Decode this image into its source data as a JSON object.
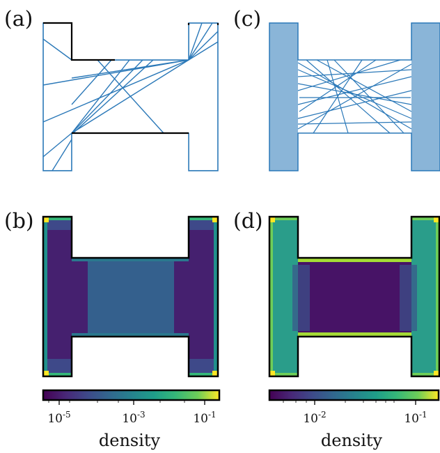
{
  "figure": {
    "panels": [
      {
        "id": "a",
        "label": "(a)",
        "content": "few-trajectories"
      },
      {
        "id": "b",
        "label": "(b)",
        "content": "density-heatmap-a"
      },
      {
        "id": "c",
        "label": "(c)",
        "content": "many-trajectories"
      },
      {
        "id": "d",
        "label": "(d)",
        "content": "density-heatmap-b"
      }
    ],
    "colorbars": [
      {
        "title": "density",
        "scale": "log",
        "ticks": [
          "10-5",
          "10-3",
          "10-1"
        ],
        "tick_values": [
          1e-05,
          0.001,
          0.1
        ]
      },
      {
        "title": "density",
        "scale": "log",
        "ticks": [
          "10-2",
          "10-1"
        ],
        "tick_values": [
          0.01,
          0.1
        ]
      }
    ],
    "colors": {
      "trajectory": "#2a78b8",
      "billiard_wall": "#000000",
      "colormap": "viridis"
    }
  },
  "chart_data": [
    {
      "type": "line",
      "panel": "(a)",
      "description_of_content": "trajectory segments inside H-shaped billiard",
      "xlabel": "",
      "ylabel": ""
    },
    {
      "type": "heatmap",
      "panel": "(b)",
      "colorscale": "viridis",
      "scale": "log",
      "colorbar_ticks": [
        "10-5",
        "10-3",
        "10-1"
      ],
      "colorbar_title": "density"
    },
    {
      "type": "line",
      "panel": "(c)",
      "description_of_content": "dense trajectory segments inside H-shaped billiard"
    },
    {
      "type": "heatmap",
      "panel": "(d)",
      "colorscale": "viridis",
      "scale": "log",
      "colorbar_ticks": [
        "10-2",
        "10-1"
      ],
      "colorbar_title": "density"
    }
  ]
}
